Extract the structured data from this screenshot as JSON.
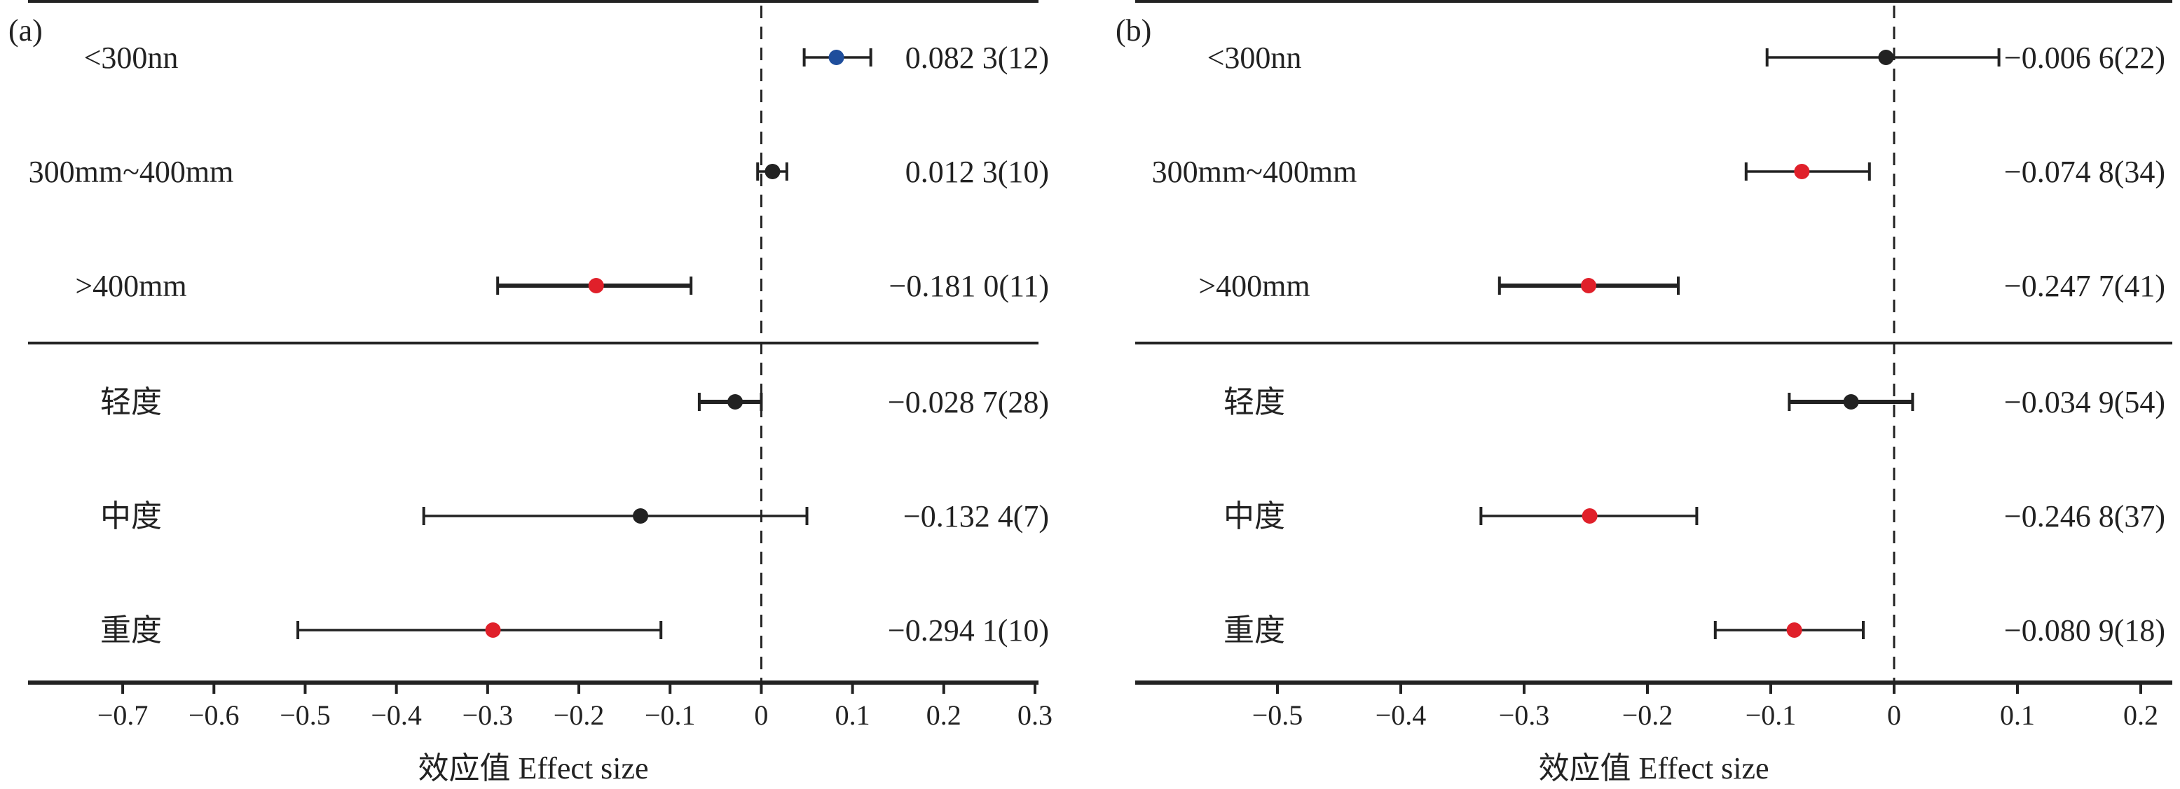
{
  "chart_data": [
    {
      "type": "forest",
      "panel": "(a)",
      "xlabel": "效应值 Effect size",
      "xlim": [
        -0.75,
        0.3
      ],
      "ticks": [
        -0.7,
        -0.6,
        -0.5,
        -0.4,
        -0.3,
        -0.2,
        -0.1,
        0,
        0.1,
        0.2,
        0.3
      ],
      "tick_labels": [
        "−0.7",
        "−0.6",
        "−0.5",
        "−0.4",
        "−0.3",
        "−0.2",
        "−0.1",
        "0",
        "0.1",
        "0.2",
        "0.3"
      ],
      "reference_line": 0,
      "groups": [
        {
          "rows": [
            {
              "label": "<300nn",
              "estimate": 0.0823,
              "ci": [
                0.047,
                0.12
              ],
              "value_label": "0.082 3(12)",
              "color": "#1f4e9c"
            },
            {
              "label": "300mm~400mm",
              "estimate": 0.0123,
              "ci": [
                -0.004,
                0.028
              ],
              "value_label": "0.012 3(10)",
              "color": "#222222"
            },
            {
              "label": ">400mm",
              "estimate": -0.181,
              "ci": [
                -0.289,
                -0.077
              ],
              "value_label": "−0.181 0(11)",
              "color": "#e0202a"
            }
          ]
        },
        {
          "rows": [
            {
              "label": "轻度",
              "estimate": -0.0287,
              "ci": [
                -0.068,
                0.0
              ],
              "value_label": "−0.028 7(28)",
              "color": "#222222"
            },
            {
              "label": "中度",
              "estimate": -0.1324,
              "ci": [
                -0.37,
                0.05
              ],
              "value_label": "−0.132 4(7)",
              "color": "#222222"
            },
            {
              "label": "重度",
              "estimate": -0.2941,
              "ci": [
                -0.508,
                -0.11
              ],
              "value_label": "−0.294 1(10)",
              "color": "#e0202a"
            }
          ]
        }
      ]
    },
    {
      "type": "forest",
      "panel": "(b)",
      "xlabel": "效应值 Effect size",
      "xlim": [
        -0.55,
        0.2
      ],
      "ticks": [
        -0.5,
        -0.4,
        -0.3,
        -0.2,
        -0.1,
        0,
        0.1,
        0.2
      ],
      "tick_labels": [
        "−0.5",
        "−0.4",
        "−0.3",
        "−0.2",
        "−0.1",
        "0",
        "0.1",
        "0.2"
      ],
      "reference_line": 0,
      "groups": [
        {
          "rows": [
            {
              "label": "<300nn",
              "estimate": -0.0066,
              "ci": [
                -0.103,
                0.085
              ],
              "value_label": "−0.006 6(22)",
              "color": "#222222"
            },
            {
              "label": "300mm~400mm",
              "estimate": -0.0748,
              "ci": [
                -0.12,
                -0.02
              ],
              "value_label": "−0.074 8(34)",
              "color": "#e0202a"
            },
            {
              "label": ">400mm",
              "estimate": -0.2477,
              "ci": [
                -0.32,
                -0.175
              ],
              "value_label": "−0.247 7(41)",
              "color": "#e0202a"
            }
          ]
        },
        {
          "rows": [
            {
              "label": "轻度",
              "estimate": -0.0349,
              "ci": [
                -0.085,
                0.015
              ],
              "value_label": "−0.034 9(54)",
              "color": "#222222"
            },
            {
              "label": "中度",
              "estimate": -0.2468,
              "ci": [
                -0.335,
                -0.16
              ],
              "value_label": "−0.246 8(37)",
              "color": "#e0202a"
            },
            {
              "label": "重度",
              "estimate": -0.0809,
              "ci": [
                -0.145,
                -0.025
              ],
              "value_label": "−0.080 9(18)",
              "color": "#e0202a"
            }
          ]
        }
      ]
    }
  ]
}
